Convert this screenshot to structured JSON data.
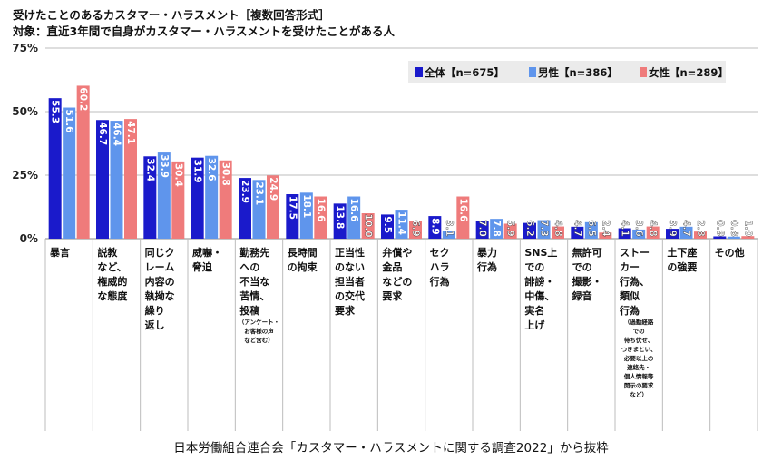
{
  "header": {
    "title": "受けたことのあるカスタマー・ハラスメント［複数回答形式］",
    "subtitle": "対象：直近3年間で自身がカスタマー・ハラスメントを受けたことがある人"
  },
  "footer": {
    "source": "日本労働組合連合会「カスタマー・ハラスメントに関する調査2022」から抜粋"
  },
  "colors": {
    "zentai": "#1a1acb",
    "dansei": "#5f95ec",
    "josei": "#ef7b7b",
    "grid": "#bcbcbc",
    "box": "#ebebeb"
  },
  "chart_data": {
    "type": "bar",
    "ylim": [
      0,
      75
    ],
    "yticks": [
      "0%",
      "25%",
      "50%",
      "75%"
    ],
    "ytick_values": [
      0,
      25,
      50,
      75
    ],
    "grid": true,
    "legend_position": "top-right",
    "legend": [
      "全体【n=675】",
      "男性【n=386】",
      "女性【n=289】"
    ],
    "categories": [
      {
        "lines": [
          "暴言"
        ],
        "note": []
      },
      {
        "lines": [
          "説教",
          "など、",
          "権威的",
          "な態度"
        ],
        "note": []
      },
      {
        "lines": [
          "同じク",
          "レーム",
          "内容の",
          "執拗な",
          "繰り",
          "返し"
        ],
        "note": []
      },
      {
        "lines": [
          "威嚇・",
          "脅迫"
        ],
        "note": []
      },
      {
        "lines": [
          "勤務先",
          "への",
          "不当な",
          "苦情、",
          "投稿"
        ],
        "note": [
          "（アンケート・",
          "お客様の声",
          "など含む）"
        ]
      },
      {
        "lines": [
          "長時間",
          "の拘束"
        ],
        "note": []
      },
      {
        "lines": [
          "正当性",
          "のない",
          "担当者",
          "の交代",
          "要求"
        ],
        "note": []
      },
      {
        "lines": [
          "弁償や",
          "金品",
          "などの",
          "要求"
        ],
        "note": []
      },
      {
        "lines": [
          "セク",
          "ハラ",
          "行為"
        ],
        "note": []
      },
      {
        "lines": [
          "暴力",
          "行為"
        ],
        "note": []
      },
      {
        "lines": [
          "SNS上",
          "での",
          "誹謗・",
          "中傷、",
          "実名",
          "上げ"
        ],
        "note": []
      },
      {
        "lines": [
          "無許可",
          "での",
          "撮影・",
          "録音"
        ],
        "note": []
      },
      {
        "lines": [
          "ストー",
          "カー",
          "行為、",
          "類似",
          "行為"
        ],
        "note": [
          "（過勤経路",
          "での",
          "待ち伏せ、",
          "つきまとい、",
          "必要以上の",
          "連絡先・",
          "個人情報等",
          "開示の要求",
          "など）"
        ]
      },
      {
        "lines": [
          "土下座",
          "の強要"
        ],
        "note": []
      },
      {
        "lines": [
          "その他"
        ],
        "note": []
      }
    ],
    "series": [
      {
        "name": "全体【n=675】",
        "values": [
          55.3,
          46.7,
          32.4,
          31.9,
          23.9,
          17.5,
          13.8,
          9.5,
          8.9,
          7.0,
          6.2,
          4.7,
          4.1,
          3.9,
          0.9
        ]
      },
      {
        "name": "男性【n=386】",
        "values": [
          51.6,
          46.4,
          33.9,
          32.6,
          23.1,
          18.1,
          16.6,
          11.4,
          3.1,
          7.8,
          7.3,
          6.5,
          3.6,
          4.7,
          0.8
        ]
      },
      {
        "name": "女性【n=289】",
        "values": [
          60.2,
          47.1,
          30.4,
          30.8,
          24.9,
          16.6,
          10.0,
          6.9,
          16.6,
          5.9,
          4.8,
          2.4,
          4.8,
          2.8,
          1.0
        ]
      }
    ]
  }
}
